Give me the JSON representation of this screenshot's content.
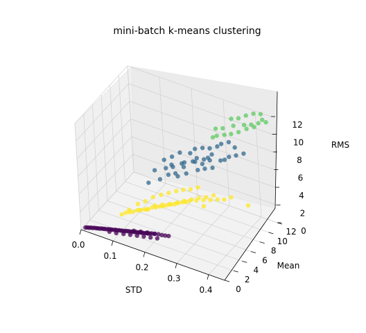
{
  "chart_data": {
    "type": "scatter",
    "projection": "3d",
    "title": "mini-batch k-means clustering",
    "xlabel": "STD",
    "ylabel": "Mean",
    "zlabel": "RMS",
    "xlim": [
      0.0,
      0.45
    ],
    "ylim": [
      0,
      12
    ],
    "zlim": [
      0,
      12
    ],
    "xticks": [
      "0.0",
      "0.1",
      "0.2",
      "0.3",
      "0.4"
    ],
    "yticks": [
      "0",
      "2",
      "4",
      "6",
      "8",
      "10",
      "12"
    ],
    "zticks": [
      "0",
      "2",
      "4",
      "6",
      "8",
      "10",
      "12"
    ],
    "grid": true,
    "legend": "none",
    "clusters": [
      {
        "color": "#440154",
        "points": [
          [
            0.01,
            0.3,
            0.2
          ],
          [
            0.015,
            0.35,
            0.25
          ],
          [
            0.02,
            0.4,
            0.25
          ],
          [
            0.025,
            0.45,
            0.3
          ],
          [
            0.03,
            0.5,
            0.3
          ],
          [
            0.035,
            0.55,
            0.35
          ],
          [
            0.04,
            0.6,
            0.35
          ],
          [
            0.045,
            0.6,
            0.4
          ],
          [
            0.05,
            0.65,
            0.4
          ],
          [
            0.055,
            0.7,
            0.45
          ],
          [
            0.06,
            0.75,
            0.45
          ],
          [
            0.065,
            0.75,
            0.5
          ],
          [
            0.07,
            0.8,
            0.5
          ],
          [
            0.075,
            0.85,
            0.55
          ],
          [
            0.08,
            0.9,
            0.55
          ],
          [
            0.085,
            0.9,
            0.6
          ],
          [
            0.09,
            0.95,
            0.6
          ],
          [
            0.095,
            1.0,
            0.65
          ],
          [
            0.1,
            1.0,
            0.65
          ],
          [
            0.105,
            1.05,
            0.7
          ],
          [
            0.11,
            1.1,
            0.7
          ],
          [
            0.115,
            1.1,
            0.75
          ],
          [
            0.12,
            1.15,
            0.75
          ],
          [
            0.125,
            1.2,
            0.8
          ],
          [
            0.13,
            1.25,
            0.8
          ],
          [
            0.135,
            1.25,
            0.85
          ],
          [
            0.14,
            1.3,
            0.85
          ],
          [
            0.145,
            1.3,
            0.9
          ],
          [
            0.15,
            1.35,
            0.9
          ],
          [
            0.155,
            1.4,
            0.95
          ],
          [
            0.16,
            1.4,
            0.95
          ],
          [
            0.165,
            1.45,
            1.0
          ],
          [
            0.17,
            1.5,
            1.0
          ],
          [
            0.175,
            1.5,
            1.05
          ],
          [
            0.18,
            1.55,
            1.05
          ],
          [
            0.185,
            1.6,
            1.1
          ],
          [
            0.19,
            1.6,
            1.1
          ],
          [
            0.195,
            1.65,
            1.15
          ],
          [
            0.2,
            1.7,
            1.2
          ],
          [
            0.21,
            1.75,
            1.25
          ],
          [
            0.22,
            1.8,
            1.3
          ],
          [
            0.23,
            1.85,
            1.3
          ],
          [
            0.24,
            1.9,
            1.35
          ],
          [
            0.25,
            1.95,
            1.4
          ],
          [
            0.12,
            1.0,
            0.5
          ],
          [
            0.14,
            1.1,
            0.6
          ],
          [
            0.16,
            1.2,
            0.7
          ],
          [
            0.18,
            1.3,
            0.8
          ],
          [
            0.2,
            1.4,
            0.9
          ],
          [
            0.22,
            1.5,
            1.0
          ],
          [
            0.1,
            0.8,
            0.45
          ],
          [
            0.08,
            0.7,
            0.4
          ],
          [
            0.15,
            1.25,
            1.1
          ],
          [
            0.17,
            1.35,
            1.2
          ],
          [
            0.19,
            1.45,
            1.3
          ],
          [
            0.21,
            1.55,
            1.35
          ]
        ]
      },
      {
        "color": "#fde725",
        "points": [
          [
            0.1,
            2.2,
            1.8
          ],
          [
            0.11,
            2.4,
            2.0
          ],
          [
            0.12,
            2.6,
            2.1
          ],
          [
            0.13,
            2.7,
            2.2
          ],
          [
            0.14,
            2.9,
            2.4
          ],
          [
            0.15,
            3.0,
            2.5
          ],
          [
            0.16,
            3.2,
            2.6
          ],
          [
            0.17,
            3.3,
            2.7
          ],
          [
            0.18,
            3.5,
            2.9
          ],
          [
            0.19,
            3.6,
            3.0
          ],
          [
            0.2,
            3.8,
            3.1
          ],
          [
            0.21,
            3.9,
            3.2
          ],
          [
            0.22,
            4.0,
            3.4
          ],
          [
            0.23,
            4.2,
            3.5
          ],
          [
            0.24,
            4.3,
            3.6
          ],
          [
            0.25,
            4.4,
            3.8
          ],
          [
            0.26,
            4.6,
            3.9
          ],
          [
            0.27,
            4.7,
            4.0
          ],
          [
            0.28,
            4.8,
            4.2
          ],
          [
            0.3,
            5.0,
            4.4
          ],
          [
            0.32,
            5.2,
            4.6
          ],
          [
            0.34,
            5.3,
            4.8
          ],
          [
            0.36,
            5.5,
            5.0
          ],
          [
            0.38,
            5.6,
            5.2
          ],
          [
            0.15,
            2.8,
            2.6
          ],
          [
            0.17,
            3.0,
            2.8
          ],
          [
            0.19,
            3.4,
            3.3
          ],
          [
            0.21,
            3.7,
            3.5
          ],
          [
            0.23,
            3.9,
            3.7
          ],
          [
            0.25,
            4.1,
            4.0
          ],
          [
            0.27,
            4.4,
            4.3
          ],
          [
            0.29,
            4.6,
            4.6
          ],
          [
            0.31,
            4.9,
            4.9
          ],
          [
            0.33,
            5.1,
            5.1
          ],
          [
            0.35,
            5.4,
            5.4
          ],
          [
            0.2,
            4.2,
            4.2
          ],
          [
            0.22,
            4.5,
            4.5
          ],
          [
            0.24,
            4.8,
            4.8
          ],
          [
            0.26,
            5.0,
            5.1
          ],
          [
            0.18,
            3.8,
            3.9
          ],
          [
            0.16,
            3.4,
            3.4
          ],
          [
            0.14,
            3.1,
            3.0
          ],
          [
            0.28,
            5.2,
            5.3
          ],
          [
            0.3,
            5.5,
            5.6
          ],
          [
            0.45,
            6.0,
            5.2
          ],
          [
            0.4,
            5.8,
            5.6
          ],
          [
            0.33,
            4.5,
            4.4
          ],
          [
            0.12,
            2.5,
            2.4
          ]
        ]
      },
      {
        "color": "#31688e",
        "points": [
          [
            0.15,
            5.0,
            4.5
          ],
          [
            0.18,
            5.5,
            5.0
          ],
          [
            0.2,
            6.0,
            5.5
          ],
          [
            0.22,
            6.2,
            5.8
          ],
          [
            0.25,
            6.5,
            6.0
          ],
          [
            0.28,
            7.0,
            6.5
          ],
          [
            0.3,
            7.2,
            6.8
          ],
          [
            0.32,
            7.5,
            7.0
          ],
          [
            0.2,
            6.8,
            6.2
          ],
          [
            0.23,
            7.0,
            6.6
          ],
          [
            0.26,
            7.4,
            7.0
          ],
          [
            0.29,
            7.8,
            7.4
          ],
          [
            0.21,
            6.4,
            6.3
          ],
          [
            0.24,
            6.9,
            6.9
          ],
          [
            0.27,
            7.2,
            7.2
          ],
          [
            0.31,
            7.7,
            7.6
          ],
          [
            0.34,
            8.0,
            7.8
          ],
          [
            0.35,
            8.2,
            7.9
          ],
          [
            0.36,
            8.5,
            8.2
          ],
          [
            0.38,
            8.7,
            8.5
          ],
          [
            0.4,
            9.0,
            8.8
          ],
          [
            0.3,
            8.5,
            8.4
          ],
          [
            0.32,
            8.8,
            8.7
          ],
          [
            0.25,
            7.6,
            7.7
          ],
          [
            0.2,
            7.0,
            7.0
          ],
          [
            0.18,
            6.6,
            6.6
          ],
          [
            0.22,
            7.4,
            7.5
          ],
          [
            0.26,
            8.0,
            8.1
          ],
          [
            0.33,
            9.0,
            9.0
          ],
          [
            0.35,
            9.3,
            9.3
          ],
          [
            0.3,
            8.0,
            7.6
          ],
          [
            0.27,
            7.6,
            7.4
          ],
          [
            0.19,
            6.2,
            6.0
          ],
          [
            0.24,
            6.7,
            6.5
          ],
          [
            0.29,
            7.4,
            7.1
          ],
          [
            0.31,
            8.2,
            8.0
          ],
          [
            0.37,
            9.2,
            9.0
          ],
          [
            0.16,
            5.8,
            5.6
          ],
          [
            0.23,
            6.0,
            5.7
          ],
          [
            0.28,
            8.3,
            8.3
          ]
        ]
      },
      {
        "color": "#5ec962",
        "points": [
          [
            0.3,
            10.0,
            9.8
          ],
          [
            0.32,
            10.2,
            10.0
          ],
          [
            0.35,
            10.5,
            10.5
          ],
          [
            0.38,
            10.8,
            10.8
          ],
          [
            0.4,
            11.0,
            11.0
          ],
          [
            0.42,
            11.2,
            11.3
          ],
          [
            0.44,
            11.5,
            11.5
          ],
          [
            0.36,
            11.0,
            11.2
          ],
          [
            0.38,
            11.3,
            11.6
          ],
          [
            0.4,
            11.6,
            11.9
          ],
          [
            0.42,
            11.8,
            12.0
          ],
          [
            0.34,
            10.8,
            11.0
          ],
          [
            0.33,
            9.8,
            9.6
          ],
          [
            0.35,
            9.9,
            9.9
          ],
          [
            0.37,
            10.2,
            10.2
          ],
          [
            0.39,
            10.6,
            10.6
          ],
          [
            0.41,
            10.9,
            10.9
          ],
          [
            0.31,
            9.5,
            9.4
          ],
          [
            0.3,
            9.3,
            9.2
          ],
          [
            0.43,
            11.4,
            11.7
          ]
        ]
      }
    ]
  }
}
